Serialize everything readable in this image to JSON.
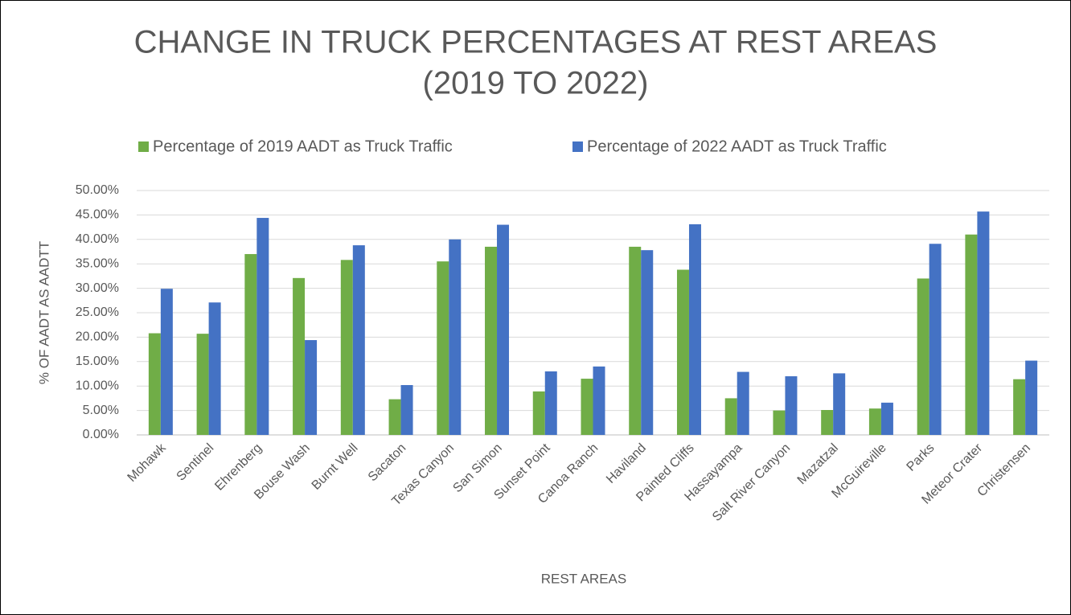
{
  "chart_data": {
    "type": "bar",
    "title": [
      "CHANGE IN TRUCK PERCENTAGES AT REST AREAS",
      "(2019 TO 2022)"
    ],
    "x_label": "REST AREAS",
    "y_label": "% OF AADT AS AADTT",
    "categories": [
      "Mohawk",
      "Sentinel",
      "Ehrenberg",
      "Bouse Wash",
      "Burnt Well",
      "Sacaton",
      "Texas Canyon",
      "San Simon",
      "Sunset Point",
      "Canoa Ranch",
      "Haviland",
      "Painted Cliffs",
      "Hassayampa",
      "Salt River Canyon",
      "Mazatzal",
      "McGuireville",
      "Parks",
      "Meteor Crater",
      "Christensen"
    ],
    "series": [
      {
        "name": "Percentage of 2019 AADT as Truck Traffic",
        "color": "#70ad47",
        "values": [
          20.8,
          20.7,
          37.0,
          32.1,
          35.8,
          7.3,
          35.5,
          38.5,
          8.9,
          11.5,
          38.5,
          33.8,
          7.5,
          5.0,
          5.1,
          5.4,
          32.0,
          41.0,
          11.4
        ]
      },
      {
        "name": "Percentage of 2022 AADT as Truck Traffic",
        "color": "#4472c4",
        "values": [
          29.9,
          27.1,
          44.4,
          19.4,
          38.8,
          10.2,
          40.0,
          43.0,
          13.0,
          14.0,
          37.8,
          43.1,
          12.9,
          12.0,
          12.6,
          6.6,
          39.1,
          45.7,
          15.2
        ]
      }
    ],
    "ylim": [
      0,
      50
    ],
    "yticks": [
      {
        "value": 0,
        "label": "0.00%"
      },
      {
        "value": 5,
        "label": "5.00%"
      },
      {
        "value": 10,
        "label": "10.00%"
      },
      {
        "value": 15,
        "label": "15.00%"
      },
      {
        "value": 20,
        "label": "20.00%"
      },
      {
        "value": 25,
        "label": "25.00%"
      },
      {
        "value": 30,
        "label": "30.00%"
      },
      {
        "value": 35,
        "label": "35.00%"
      },
      {
        "value": 40,
        "label": "40.00%"
      },
      {
        "value": 45,
        "label": "45.00%"
      },
      {
        "value": 50,
        "label": "50.00%"
      }
    ],
    "grid": true
  }
}
